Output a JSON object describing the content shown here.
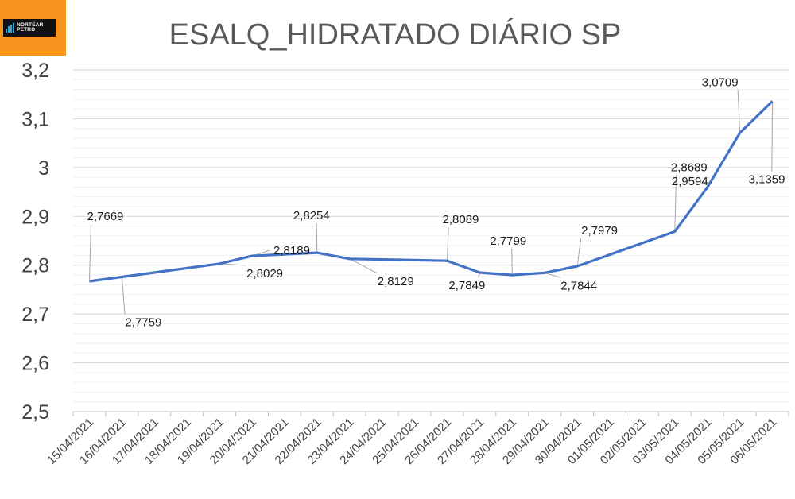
{
  "logo": {
    "text_line1": "NORTEAR",
    "text_line2": "PETRO"
  },
  "chart_data": {
    "type": "line",
    "title": "ESALQ_HIDRATADO DIÁRIO SP",
    "categories": [
      "15/04/2021",
      "16/04/2021",
      "17/04/2021",
      "18/04/2021",
      "19/04/2021",
      "20/04/2021",
      "21/04/2021",
      "22/04/2021",
      "23/04/2021",
      "24/04/2021",
      "25/04/2021",
      "26/04/2021",
      "27/04/2021",
      "28/04/2021",
      "29/04/2021",
      "30/04/2021",
      "01/05/2021",
      "02/05/2021",
      "03/05/2021",
      "04/05/2021",
      "05/05/2021",
      "06/05/2021"
    ],
    "points": [
      {
        "x": "15/04/2021",
        "y": 2.7669
      },
      {
        "x": "16/04/2021",
        "y": 2.7759
      },
      {
        "x": "19/04/2021",
        "y": 2.8029
      },
      {
        "x": "20/04/2021",
        "y": 2.8189
      },
      {
        "x": "22/04/2021",
        "y": 2.8254
      },
      {
        "x": "23/04/2021",
        "y": 2.8129
      },
      {
        "x": "26/04/2021",
        "y": 2.8089
      },
      {
        "x": "27/04/2021",
        "y": 2.7849
      },
      {
        "x": "28/04/2021",
        "y": 2.7799
      },
      {
        "x": "29/04/2021",
        "y": 2.7844
      },
      {
        "x": "30/04/2021",
        "y": 2.7979
      },
      {
        "x": "03/05/2021",
        "y": 2.8689
      },
      {
        "x": "04/05/2021",
        "y": 2.9594
      },
      {
        "x": "05/05/2021",
        "y": 3.0709
      },
      {
        "x": "06/05/2021",
        "y": 3.1359
      }
    ],
    "labels": [
      "2,7669",
      "2,7759",
      "2,8029",
      "2,8189",
      "2,8254",
      "2,8129",
      "2,8089",
      "2,7849",
      "2,7799",
      "2,7844",
      "2,7979",
      "2,8689",
      "2,9594",
      "3,0709",
      "3,1359"
    ],
    "yticks": [
      "2,5",
      "2,6",
      "2,7",
      "2,8",
      "2,9",
      "3",
      "3,1",
      "3,2"
    ],
    "ylim": [
      2.5,
      3.2
    ],
    "grid": true,
    "line_color": "#4472c4"
  }
}
